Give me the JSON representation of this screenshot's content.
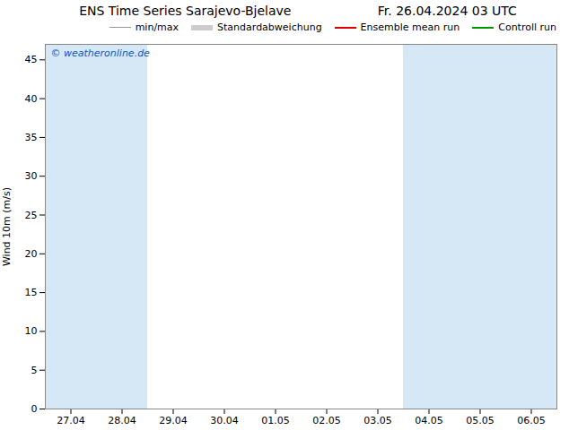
{
  "chart_data": {
    "type": "line",
    "title": "ENS Time Series Sarajevo-Bjelave",
    "subtitle": "Fr. 26.04.2024 03 UTC",
    "y_label": "Wind 10m (m/s)",
    "categories": [
      "27.04",
      "28.04",
      "29.04",
      "30.04",
      "01.05",
      "02.05",
      "03.05",
      "04.05",
      "05.05",
      "06.05"
    ],
    "series": [
      {
        "name": "min/max",
        "color": "#999999",
        "values": [
          null,
          null,
          null,
          null,
          null,
          null,
          null,
          null,
          null,
          null
        ]
      },
      {
        "name": "Standardabweichung",
        "color": "#cccccc",
        "values": [
          null,
          null,
          null,
          null,
          null,
          null,
          null,
          null,
          null,
          null
        ]
      },
      {
        "name": "Ensemble mean run",
        "color": "#dd0000",
        "values": [
          null,
          null,
          null,
          null,
          null,
          null,
          null,
          null,
          null,
          null
        ]
      },
      {
        "name": "Controll run",
        "color": "#009900",
        "values": [
          null,
          null,
          null,
          null,
          null,
          null,
          null,
          null,
          null,
          null
        ]
      }
    ],
    "shaded_categories": [
      "27.04",
      "28.04",
      "04.05",
      "05.05",
      "06.05"
    ],
    "shaded_color": "#d6e8f5",
    "annotations": [
      {
        "text": "© weatheronline.de",
        "color": "#1155cc"
      }
    ],
    "ylim": [
      0,
      47
    ],
    "yticks": [
      0,
      5,
      10,
      15,
      20,
      25,
      30,
      35,
      40,
      45
    ],
    "grid": false,
    "legend": "upper right"
  }
}
